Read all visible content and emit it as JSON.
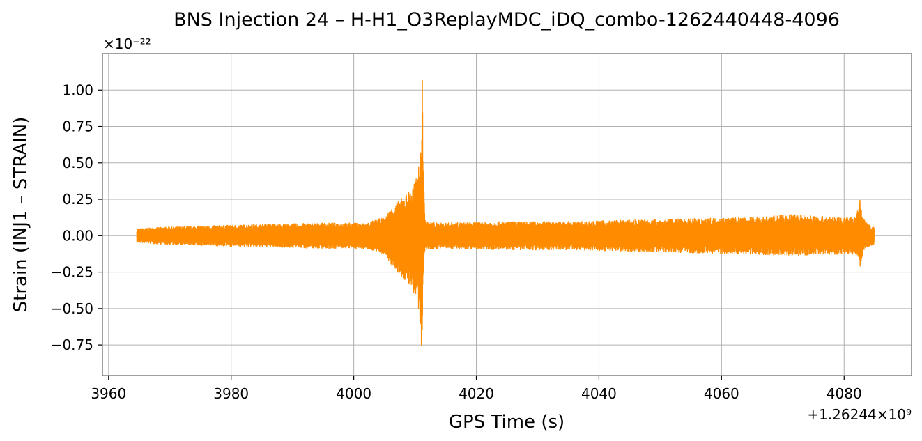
{
  "chart_data": {
    "type": "line",
    "title": "BNS Injection 24 – H-H1_O3ReplayMDC_iDQ_combo-1262440448-4096",
    "xlabel": "GPS Time (s)",
    "ylabel": "Strain (INJ1 – STRAIN)",
    "x_offset_label": "+1.26244×10⁹",
    "y_exponent_label": "×10⁻²²",
    "xlim": [
      3959,
      4091
    ],
    "ylim": [
      -0.96,
      1.25
    ],
    "x_ticks": [
      3960,
      3980,
      4000,
      4020,
      4040,
      4060,
      4080
    ],
    "x_tick_labels": [
      "3960",
      "3980",
      "4000",
      "4020",
      "4040",
      "4060",
      "4080"
    ],
    "y_ticks": [
      -0.75,
      -0.5,
      -0.25,
      0.0,
      0.25,
      0.5,
      0.75,
      1.0
    ],
    "y_tick_labels": [
      "−0.75",
      "−0.50",
      "−0.25",
      "0.00",
      "0.25",
      "0.50",
      "0.75",
      "1.00"
    ],
    "grid": true,
    "series": [
      {
        "color": "#ff8c00",
        "x_range": [
          3964.6,
          4084.9
        ],
        "envelope": {
          "x": [
            3964.6,
            3968,
            3975,
            3985,
            3995,
            4002,
            4005,
            4006.5,
            4008,
            4009.5,
            4010.5,
            4011.0,
            4011.2,
            4011.4,
            4011.6,
            4012,
            4014,
            4025,
            4035,
            4045,
            4055,
            4065,
            4072,
            4078,
            4082,
            4082.6,
            4082.8,
            4083.2,
            4084,
            4084.9
          ],
          "upper": [
            0.05,
            0.06,
            0.07,
            0.08,
            0.09,
            0.09,
            0.13,
            0.21,
            0.27,
            0.33,
            0.45,
            0.62,
            1.15,
            0.4,
            0.12,
            0.1,
            0.09,
            0.1,
            0.1,
            0.11,
            0.12,
            0.13,
            0.15,
            0.13,
            0.13,
            0.28,
            0.2,
            0.12,
            0.08,
            0.06
          ],
          "lower": [
            -0.05,
            -0.06,
            -0.07,
            -0.08,
            -0.09,
            -0.09,
            -0.13,
            -0.23,
            -0.3,
            -0.37,
            -0.5,
            -0.88,
            -0.62,
            -0.3,
            -0.12,
            -0.1,
            -0.09,
            -0.1,
            -0.1,
            -0.11,
            -0.12,
            -0.13,
            -0.14,
            -0.13,
            -0.13,
            -0.24,
            -0.18,
            -0.1,
            -0.08,
            -0.06
          ]
        }
      }
    ]
  }
}
